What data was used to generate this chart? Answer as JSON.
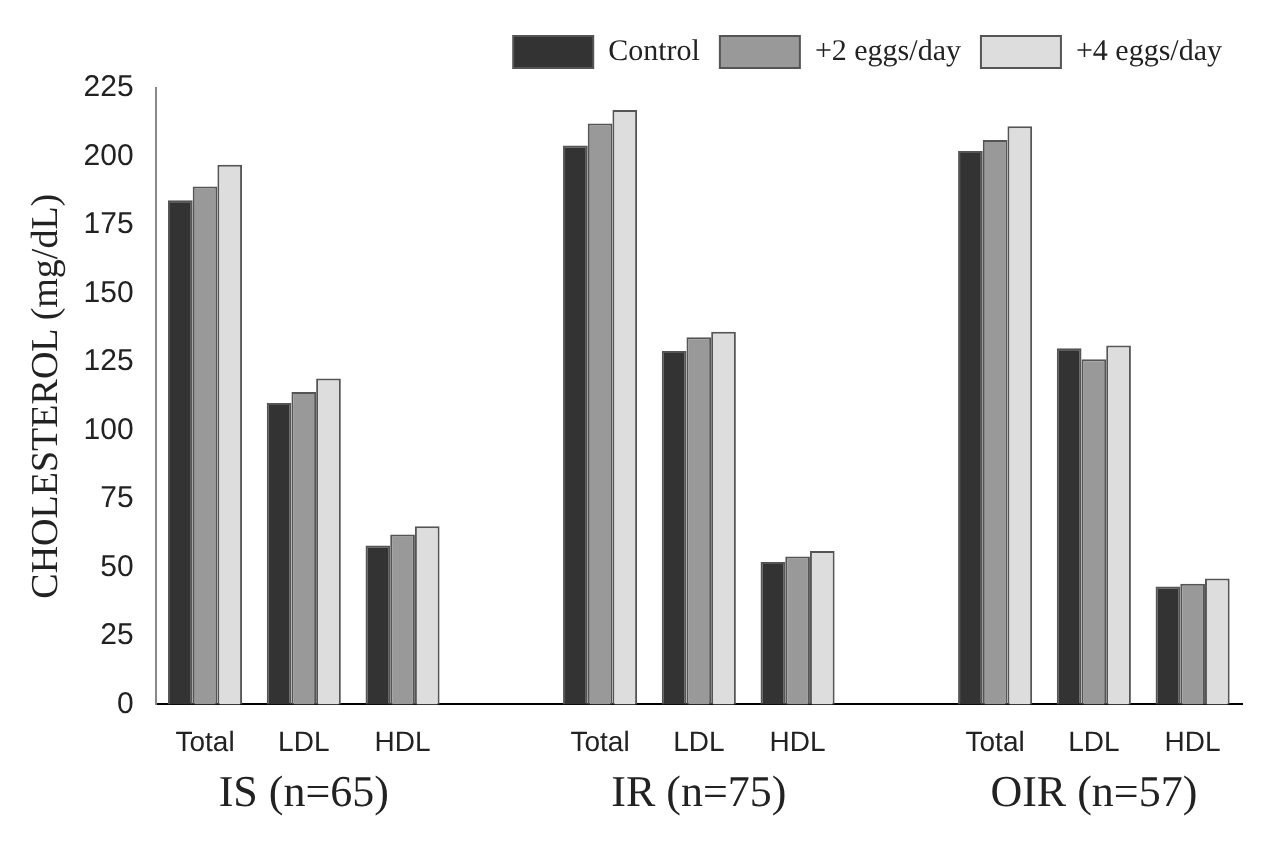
{
  "chart_data": {
    "type": "bar",
    "ylabel": "CHOLESTEROL (mg/dL)",
    "categories": [
      "Total",
      "LDL",
      "HDL",
      null,
      "Total",
      "LDL",
      "HDL",
      null,
      "Total",
      "LDL",
      "HDL"
    ],
    "series": [
      {
        "name": "Control",
        "color": "#333333",
        "values": [
          184,
          110,
          58,
          null,
          204,
          129,
          52,
          null,
          202,
          130,
          43
        ]
      },
      {
        "name": "+2 eggs/day",
        "color": "#999999",
        "values": [
          189,
          114,
          62,
          null,
          212,
          134,
          54,
          null,
          206,
          126,
          44
        ]
      },
      {
        "name": "+4 eggs/day",
        "color": "#dddddd",
        "values": [
          197,
          119,
          65,
          null,
          217,
          136,
          56,
          null,
          211,
          131,
          46
        ]
      }
    ],
    "ylim": [
      0,
      225
    ],
    "yticks": [
      0,
      25,
      50,
      75,
      100,
      125,
      150,
      175,
      200,
      225
    ],
    "grid": false,
    "legend": "top",
    "annotations": [
      "IS (n=65)",
      "IR (n=75)",
      "OIR (n=57)"
    ]
  }
}
